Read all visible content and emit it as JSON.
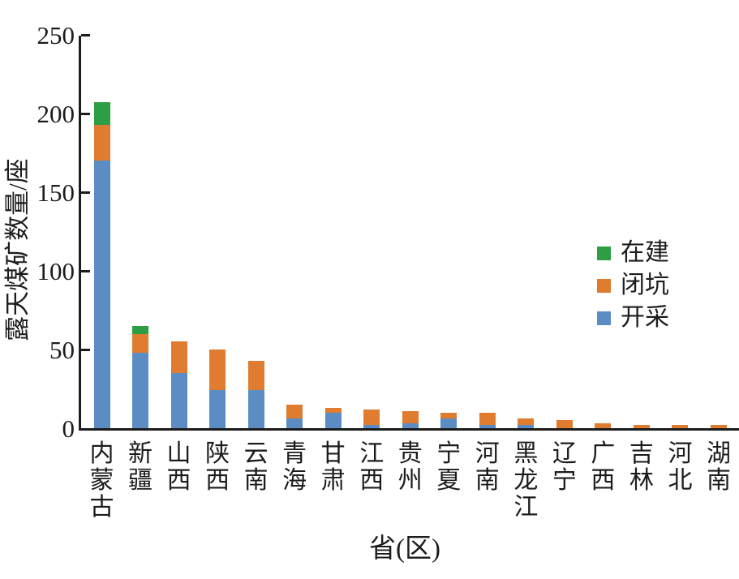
{
  "chart_data": {
    "type": "bar",
    "subtype": "stacked-vertical",
    "title": "",
    "xlabel": "省(区)",
    "ylabel": "露天煤矿数量/座",
    "ylim": [
      0,
      250
    ],
    "yticks": [
      0,
      50,
      100,
      150,
      200,
      250
    ],
    "grid": "off",
    "legend_position": "center-right-inside",
    "categories": [
      "内蒙古",
      "新疆",
      "山西",
      "陕西",
      "云南",
      "青海",
      "甘肃",
      "江西",
      "贵州",
      "宁夏",
      "河南",
      "黑龙江",
      "辽宁",
      "广西",
      "吉林",
      "河北",
      "湖南"
    ],
    "series": [
      {
        "name": "开采",
        "color": "#5b8cc4",
        "values": [
          170,
          48,
          35,
          24,
          24,
          6,
          10,
          2,
          3,
          6,
          2,
          2,
          0,
          0,
          0,
          0,
          0
        ]
      },
      {
        "name": "闭坑",
        "color": "#df7c30",
        "values": [
          23,
          12,
          20,
          26,
          19,
          9,
          3,
          10,
          8,
          4,
          8,
          4,
          5,
          3,
          2,
          2,
          2
        ]
      },
      {
        "name": "在建",
        "color": "#2d9e44",
        "values": [
          14,
          5,
          0,
          0,
          0,
          0,
          0,
          0,
          0,
          0,
          0,
          0,
          0,
          0,
          0,
          0,
          0
        ]
      }
    ],
    "totals": [
      207,
      65,
      55,
      50,
      43,
      15,
      13,
      12,
      11,
      10,
      10,
      6,
      5,
      3,
      2,
      2,
      2
    ],
    "legend_order_top_to_bottom": [
      "在建",
      "闭坑",
      "开采"
    ]
  },
  "colors": {
    "mining_blue": "#5b8cc4",
    "closed_orange": "#df7c30",
    "under_construction_green": "#2d9e44",
    "axis_black": "#1c1c1c",
    "background": "#ffffff"
  }
}
